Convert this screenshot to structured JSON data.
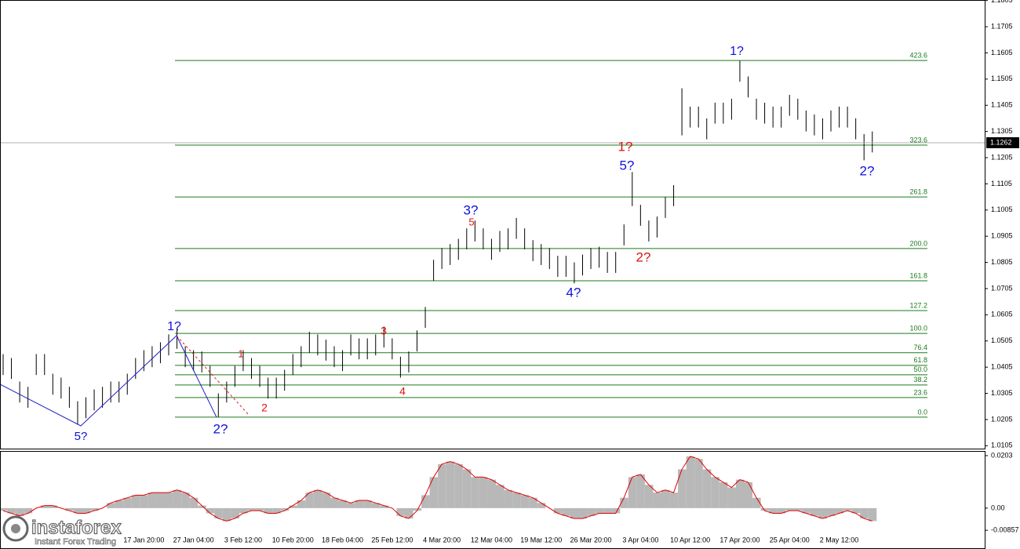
{
  "chart_data": [
    {
      "type": "range",
      "color": "#000000",
      "ylim": [
        1.0094,
        1.1807
      ],
      "yticks": [
        1.0105,
        1.0205,
        1.0305,
        1.0405,
        1.0505,
        1.0605,
        1.0705,
        1.0805,
        1.0905,
        1.1005,
        1.1105,
        1.1205,
        1.1305,
        1.1405,
        1.1505,
        1.1605,
        1.1705,
        1.1805
      ],
      "categories": [
        null,
        null,
        null,
        null,
        null,
        null,
        null,
        null,
        null,
        null,
        null,
        null,
        null,
        null,
        null,
        null,
        null,
        "17 Jan 20:00",
        null,
        null,
        null,
        null,
        null,
        "27 Jan 04:00",
        null,
        null,
        null,
        null,
        null,
        "3 Feb 12:00",
        null,
        null,
        null,
        null,
        null,
        "10 Feb 20:00",
        null,
        null,
        null,
        null,
        null,
        "18 Feb 04:00",
        null,
        null,
        null,
        null,
        null,
        "25 Feb 12:00",
        null,
        null,
        null,
        null,
        null,
        "4 Mar 20:00",
        null,
        null,
        null,
        null,
        null,
        "12 Mar 04:00",
        null,
        null,
        null,
        null,
        null,
        "19 Mar 12:00",
        null,
        null,
        null,
        null,
        null,
        "26 Mar 20:00",
        null,
        null,
        null,
        null,
        null,
        "3 Apr 04:00",
        null,
        null,
        null,
        null,
        null,
        "10 Apr 12:00",
        null,
        null,
        null,
        null,
        null,
        "17 Apr 20:00",
        null,
        null,
        null,
        null,
        null,
        "25 Apr 04:00",
        null,
        null,
        null,
        null,
        null,
        "2 May 12:00",
        null,
        null,
        null,
        null
      ],
      "high": [
        1.0455,
        1.044,
        1.035,
        1.033,
        1.0455,
        1.0455,
        1.038,
        1.0365,
        1.033,
        1.0275,
        1.029,
        1.032,
        1.033,
        1.035,
        1.035,
        1.038,
        1.044,
        1.047,
        1.0485,
        1.05,
        1.053,
        1.0555,
        1.0485,
        1.047,
        1.0465,
        1.041,
        1.0305,
        1.035,
        1.041,
        1.047,
        1.044,
        1.041,
        1.0365,
        1.0365,
        1.0395,
        1.0455,
        1.0485,
        1.054,
        1.053,
        1.051,
        1.0485,
        1.047,
        1.053,
        1.0515,
        1.0515,
        1.053,
        1.056,
        1.0515,
        1.0445,
        1.0465,
        1.0545,
        1.0635,
        1.0815,
        1.086,
        1.0875,
        1.0895,
        1.0935,
        1.0965,
        1.0935,
        1.0895,
        1.0925,
        1.0935,
        1.0975,
        1.0935,
        1.089,
        1.0875,
        1.086,
        1.083,
        1.083,
        1.0805,
        1.0835,
        1.086,
        1.0865,
        1.0845,
        1.0845,
        1.095,
        1.115,
        1.1025,
        1.0965,
        1.098,
        1.1055,
        1.11,
        1.147,
        1.14,
        1.14,
        1.1355,
        1.1415,
        1.1415,
        1.143,
        1.1575,
        1.1515,
        1.143,
        1.1415,
        1.14,
        1.14,
        1.1445,
        1.143,
        1.1385,
        1.137,
        1.1355,
        1.1385,
        1.14,
        1.14,
        1.1355,
        1.1295,
        1.1305
      ],
      "low": [
        1.0375,
        1.036,
        1.027,
        1.025,
        1.0375,
        1.0375,
        1.03,
        1.0285,
        1.025,
        1.0185,
        1.021,
        1.024,
        1.025,
        1.027,
        1.027,
        1.03,
        1.036,
        1.039,
        1.0405,
        1.042,
        1.045,
        1.0475,
        1.0405,
        1.039,
        1.0385,
        1.033,
        1.0215,
        1.027,
        1.033,
        1.039,
        1.036,
        1.033,
        1.0285,
        1.0285,
        1.0315,
        1.0375,
        1.0405,
        1.046,
        1.045,
        1.043,
        1.0405,
        1.039,
        1.045,
        1.0435,
        1.0435,
        1.045,
        1.048,
        1.0435,
        1.0365,
        1.0385,
        1.0465,
        1.0555,
        1.0735,
        1.078,
        1.0795,
        1.0815,
        1.0855,
        1.0885,
        1.0855,
        1.0815,
        1.0845,
        1.0855,
        1.0895,
        1.0855,
        1.081,
        1.0795,
        1.078,
        1.075,
        1.075,
        1.0725,
        1.0755,
        1.078,
        1.0785,
        1.0765,
        1.0765,
        1.087,
        1.102,
        1.0945,
        1.0885,
        1.09,
        1.0975,
        1.102,
        1.129,
        1.132,
        1.132,
        1.1275,
        1.1335,
        1.1335,
        1.135,
        1.1495,
        1.1435,
        1.135,
        1.1335,
        1.132,
        1.132,
        1.1365,
        1.135,
        1.1305,
        1.129,
        1.1275,
        1.1305,
        1.132,
        1.132,
        1.1275,
        1.1195,
        1.1225
      ],
      "last_price": 1.1262,
      "fib_color": "#1c7a1c",
      "fib_levels": [
        {
          "label": "0.0",
          "value": 1.0214
        },
        {
          "label": "23.6",
          "value": 1.0289
        },
        {
          "label": "38.2",
          "value": 1.0337
        },
        {
          "label": "50.0",
          "value": 1.0376
        },
        {
          "label": "61.8",
          "value": 1.0412
        },
        {
          "label": "76.4",
          "value": 1.046
        },
        {
          "label": "100.0",
          "value": 1.0534
        },
        {
          "label": "127.2",
          "value": 1.0621
        },
        {
          "label": "161.8",
          "value": 1.0735
        },
        {
          "label": "200.0",
          "value": 1.0858
        },
        {
          "label": "261.8",
          "value": 1.1055
        },
        {
          "label": "323.6",
          "value": 1.1253
        },
        {
          "label": "423.6",
          "value": 1.1576
        }
      ],
      "annotations": [
        {
          "text": "1?",
          "color": "#1010e0"
        },
        {
          "text": "1?",
          "color": "#1010e0"
        },
        {
          "text": "5?",
          "color": "#1010e0"
        },
        {
          "text": "2?",
          "color": "#1010e0"
        },
        {
          "text": "3?",
          "color": "#1010e0"
        },
        {
          "text": "5",
          "color": "#e01010"
        },
        {
          "text": "4?",
          "color": "#1010e0"
        },
        {
          "text": "5?",
          "color": "#1010e0"
        },
        {
          "text": "1?",
          "color": "#e01010"
        },
        {
          "text": "2?",
          "color": "#e01010"
        },
        {
          "text": "2?",
          "color": "#1010e0"
        },
        {
          "text": "1",
          "color": "#e01010"
        },
        {
          "text": "2",
          "color": "#e01010"
        },
        {
          "text": "3",
          "color": "#e01010"
        },
        {
          "text": "4",
          "color": "#e01010"
        }
      ]
    },
    {
      "type": "bar",
      "color": "#b8b8b8",
      "line_color": "#e00000",
      "ylim": [
        -0.0158,
        0.0221
      ],
      "yticks": [
        {
          "value": 0.0203,
          "label": "0.0203"
        },
        {
          "value": 0,
          "label": "0.00"
        },
        {
          "value": -0.00857,
          "label": "-0.00857"
        }
      ],
      "values": [
        -0.001,
        -0.002,
        -0.003,
        -0.002,
        0.0,
        0.001,
        0.001,
        0.0,
        -0.001,
        -0.002,
        -0.002,
        -0.001,
        0.0,
        0.002,
        0.003,
        0.004,
        0.005,
        0.005,
        0.006,
        0.006,
        0.006,
        0.007,
        0.006,
        0.004,
        0.001,
        -0.002,
        -0.004,
        -0.005,
        -0.004,
        -0.002,
        -0.001,
        -0.001,
        -0.002,
        -0.002,
        -0.001,
        0.001,
        0.003,
        0.006,
        0.007,
        0.006,
        0.004,
        0.003,
        0.002,
        0.003,
        0.003,
        0.002,
        0.001,
        0.0,
        -0.003,
        -0.004,
        -0.001,
        0.005,
        0.012,
        0.017,
        0.018,
        0.017,
        0.015,
        0.012,
        0.012,
        0.011,
        0.009,
        0.007,
        0.006,
        0.005,
        0.004,
        0.002,
        0.0,
        -0.002,
        -0.003,
        -0.004,
        -0.004,
        -0.003,
        -0.002,
        -0.002,
        -0.002,
        0.004,
        0.012,
        0.013,
        0.009,
        0.006,
        0.007,
        0.006,
        0.015,
        0.02,
        0.019,
        0.015,
        0.012,
        0.01,
        0.008,
        0.011,
        0.01,
        0.004,
        -0.001,
        -0.002,
        -0.002,
        -0.001,
        -0.001,
        -0.002,
        -0.003,
        -0.004,
        -0.003,
        -0.002,
        -0.001,
        -0.002,
        -0.004,
        -0.005
      ]
    }
  ],
  "logo": {
    "name": "instaforex",
    "tagline": "Instant Forex Trading"
  }
}
